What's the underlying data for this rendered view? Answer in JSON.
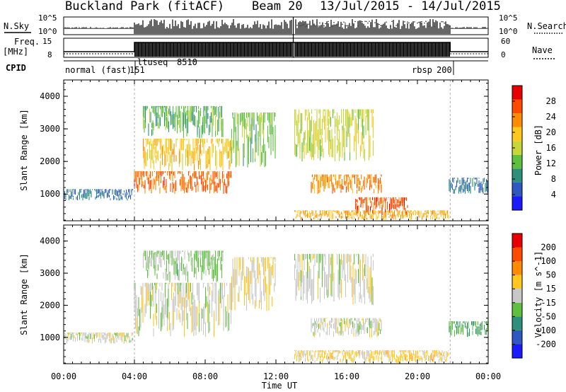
{
  "header": {
    "radar": "Buckland Park (fitACF)",
    "beam": "Beam 20",
    "date_range": "13/Jul/2015 - 14/Jul/2015"
  },
  "summary_panels": {
    "nsky_label": "N.Sky",
    "nsky_ticks": [
      "10^5",
      "10^0"
    ],
    "nsearch_label": "N.Search",
    "nsearch_ticks": [
      "10^5",
      "10^0"
    ],
    "freq_label_1": "Freq.",
    "freq_label_2": "[MHz]",
    "freq_ticks": [
      "15",
      "8"
    ],
    "nave_label": "Nave",
    "nave_ticks": [
      "60",
      "0"
    ],
    "cpid_label": "CPID",
    "cpid_segments": [
      "normal (fast)",
      "151",
      "ltuseq",
      "8510",
      "rbsp",
      "200"
    ]
  },
  "chart_data": [
    {
      "type": "heatmap",
      "name": "Power",
      "xlabel": "Time UT",
      "ylabel": "Slant Range [km]",
      "xlim_hours": [
        0,
        24
      ],
      "ylim_km": [
        180,
        4500
      ],
      "x_ticks": [
        "00:00",
        "04:00",
        "08:00",
        "12:00",
        "16:00",
        "20:00",
        "00:00"
      ],
      "y_ticks": [
        "1000",
        "2000",
        "3000",
        "4000"
      ],
      "colorbar_label": "Power [dB]",
      "colorbar_ticks": [
        "28",
        "24",
        "20",
        "16",
        "12",
        "8",
        "4"
      ],
      "colorscale": [
        "#1a1aff",
        "#2f58c0",
        "#2f8f7a",
        "#5fbf3f",
        "#c8d63a",
        "#ffc81e",
        "#ff8c00",
        "#ff4a00",
        "#e60000"
      ],
      "value_range": [
        0,
        30
      ],
      "data_gap_hours": [
        12.95,
        13.05
      ],
      "regions": [
        {
          "t": [
            0.0,
            3.95
          ],
          "r": [
            800,
            1150
          ],
          "value": 7
        },
        {
          "t": [
            4.0,
            9.5
          ],
          "r": [
            1000,
            1700
          ],
          "value": 24
        },
        {
          "t": [
            4.5,
            9.5
          ],
          "r": [
            1700,
            2700
          ],
          "value": 18
        },
        {
          "t": [
            4.5,
            9.0
          ],
          "r": [
            2700,
            3700
          ],
          "value": 11
        },
        {
          "t": [
            9.5,
            12.0
          ],
          "r": [
            1800,
            3500
          ],
          "value": 12
        },
        {
          "t": [
            13.0,
            17.5
          ],
          "r": [
            2000,
            3600
          ],
          "value": 15
        },
        {
          "t": [
            14.0,
            18.0
          ],
          "r": [
            1000,
            1600
          ],
          "value": 22
        },
        {
          "t": [
            16.5,
            19.5
          ],
          "r": [
            350,
            900
          ],
          "value": 25
        },
        {
          "t": [
            13.0,
            21.8
          ],
          "r": [
            200,
            500
          ],
          "value": 20
        },
        {
          "t": [
            21.8,
            24.0
          ],
          "r": [
            1000,
            1500
          ],
          "value": 7
        }
      ]
    },
    {
      "type": "heatmap",
      "name": "Velocity",
      "xlabel": "Time UT",
      "ylabel": "Slant Range [km]",
      "xlim_hours": [
        0,
        24
      ],
      "ylim_km": [
        180,
        4500
      ],
      "x_ticks": [
        "00:00",
        "04:00",
        "08:00",
        "12:00",
        "16:00",
        "20:00",
        "00:00"
      ],
      "y_ticks": [
        "1000",
        "2000",
        "3000",
        "4000"
      ],
      "colorbar_label": "Velocity [m s^-1]",
      "colorbar_ticks": [
        "200",
        "100",
        "50",
        "15",
        "-15",
        "-50",
        "-100",
        "-200"
      ],
      "colorscale": [
        "#1a1aff",
        "#2f58c0",
        "#2f8f7a",
        "#5fbf3f",
        "#c8c8c8",
        "#ffc81e",
        "#ff8c00",
        "#ff4a00",
        "#e60000"
      ],
      "value_range": [
        -250,
        250
      ],
      "data_gap_hours": [
        12.95,
        13.05
      ],
      "regions": [
        {
          "t": [
            0.0,
            3.95
          ],
          "r": [
            800,
            1150
          ],
          "value": 0
        },
        {
          "t": [
            4.0,
            9.5
          ],
          "r": [
            1000,
            2700
          ],
          "value": 0
        },
        {
          "t": [
            4.5,
            9.0
          ],
          "r": [
            2700,
            3700
          ],
          "value": -40
        },
        {
          "t": [
            9.5,
            12.0
          ],
          "r": [
            1800,
            3500
          ],
          "value": 30
        },
        {
          "t": [
            13.0,
            17.5
          ],
          "r": [
            2000,
            3600
          ],
          "value": 0
        },
        {
          "t": [
            14.0,
            18.0
          ],
          "r": [
            1000,
            1600
          ],
          "value": 0
        },
        {
          "t": [
            13.0,
            21.8
          ],
          "r": [
            200,
            600
          ],
          "value": 45
        },
        {
          "t": [
            21.8,
            24.0
          ],
          "r": [
            1000,
            1500
          ],
          "value": -80
        }
      ]
    }
  ]
}
